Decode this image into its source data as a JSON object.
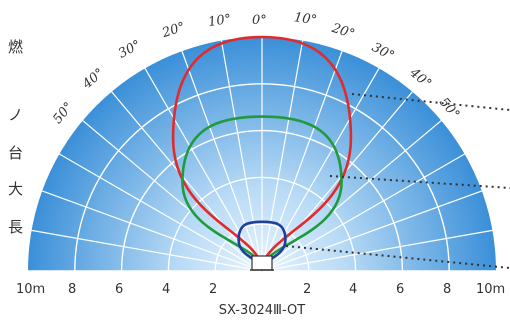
{
  "chart_data": {
    "type": "polar-distribution",
    "model_label": "SX-3024Ⅲ-OT",
    "distance_unit": "m",
    "distance_ticks_left": [
      "10m",
      "8",
      "6",
      "4",
      "2"
    ],
    "distance_ticks_right": [
      "2",
      "4",
      "6",
      "8",
      "10m"
    ],
    "angle_ticks_left": [
      "10°",
      "20°",
      "30°",
      "40°",
      "50°"
    ],
    "angle_ticks_center": "0°",
    "angle_ticks_right": [
      "10°",
      "20°",
      "30°",
      "40°",
      "50°"
    ],
    "side_text": [
      "燃",
      "ノ",
      "台",
      "大",
      "長"
    ],
    "curves": [
      {
        "color": "#e32a2a",
        "reach_m": 10,
        "half_width_m": 3.8
      },
      {
        "color": "#1f9a3c",
        "reach_m": 6.6,
        "half_width_m": 3.4
      },
      {
        "color": "#1d3fa0",
        "reach_m": 2.1,
        "half_width_m": 1.0
      }
    ],
    "max_distance_m": 10,
    "colors": {
      "fan_outer": "#3a8fd8",
      "fan_inner": "#d9ecfb",
      "grid": "#ffffff",
      "leader": "#333333"
    }
  }
}
